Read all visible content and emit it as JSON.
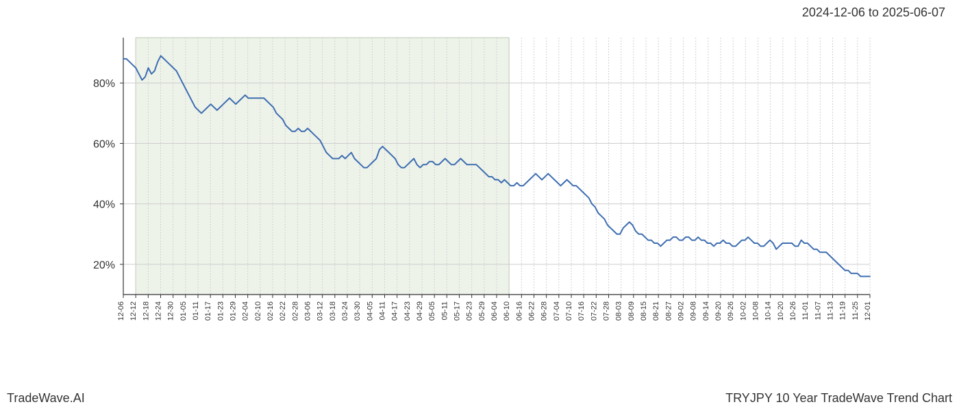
{
  "header": {
    "date_range": "2024-12-06 to 2025-06-07"
  },
  "footer": {
    "left": "TradeWave.AI",
    "right": "TRYJPY 10 Year TradeWave Trend Chart"
  },
  "chart": {
    "type": "line",
    "background_color": "#ffffff",
    "highlight_color": "#e0ead8",
    "highlight_opacity": 0.55,
    "highlight_border_color": "#b8c8b0",
    "line_color": "#3d6db0",
    "line_width": 2,
    "grid_vertical_color": "#d0d0d0",
    "grid_vertical_dash": "2,2",
    "grid_horizontal_color": "#cccccc",
    "axis_color": "#333333",
    "ylim": [
      10,
      95
    ],
    "y_ticks": [
      20,
      40,
      60,
      80
    ],
    "y_tick_labels": [
      "20%",
      "40%",
      "60%",
      "80%"
    ],
    "x_tick_labels": [
      "12-06",
      "12-12",
      "12-18",
      "12-24",
      "12-30",
      "01-05",
      "01-11",
      "01-17",
      "01-23",
      "01-29",
      "02-04",
      "02-10",
      "02-16",
      "02-22",
      "02-28",
      "03-06",
      "03-12",
      "03-18",
      "03-24",
      "03-30",
      "04-05",
      "04-11",
      "04-17",
      "04-23",
      "04-29",
      "05-05",
      "05-11",
      "05-17",
      "05-23",
      "05-29",
      "06-04",
      "06-10",
      "06-16",
      "06-22",
      "06-28",
      "07-04",
      "07-10",
      "07-16",
      "07-22",
      "07-28",
      "08-03",
      "08-09",
      "08-15",
      "08-21",
      "08-27",
      "09-02",
      "09-08",
      "09-14",
      "09-20",
      "09-26",
      "10-02",
      "10-08",
      "10-14",
      "10-20",
      "10-26",
      "11-01",
      "11-07",
      "11-13",
      "11-19",
      "11-25",
      "12-01"
    ],
    "x_tick_fontsize": 11,
    "y_tick_fontsize": 16,
    "highlight_start_index": 1,
    "highlight_end_index": 31,
    "series": [
      88,
      88,
      87,
      86,
      85,
      83,
      81,
      82,
      85,
      83,
      84,
      87,
      89,
      88,
      87,
      86,
      85,
      84,
      82,
      80,
      78,
      76,
      74,
      72,
      71,
      70,
      71,
      72,
      73,
      72,
      71,
      72,
      73,
      74,
      75,
      74,
      73,
      74,
      75,
      76,
      75,
      75,
      75,
      75,
      75,
      75,
      74,
      73,
      72,
      70,
      69,
      68,
      66,
      65,
      64,
      64,
      65,
      64,
      64,
      65,
      64,
      63,
      62,
      61,
      59,
      57,
      56,
      55,
      55,
      55,
      56,
      55,
      56,
      57,
      55,
      54,
      53,
      52,
      52,
      53,
      54,
      55,
      58,
      59,
      58,
      57,
      56,
      55,
      53,
      52,
      52,
      53,
      54,
      55,
      53,
      52,
      53,
      53,
      54,
      54,
      53,
      53,
      54,
      55,
      54,
      53,
      53,
      54,
      55,
      54,
      53,
      53,
      53,
      53,
      52,
      51,
      50,
      49,
      49,
      48,
      48,
      47,
      48,
      47,
      46,
      46,
      47,
      46,
      46,
      47,
      48,
      49,
      50,
      49,
      48,
      49,
      50,
      49,
      48,
      47,
      46,
      47,
      48,
      47,
      46,
      46,
      45,
      44,
      43,
      42,
      40,
      39,
      37,
      36,
      35,
      33,
      32,
      31,
      30,
      30,
      32,
      33,
      34,
      33,
      31,
      30,
      30,
      29,
      28,
      28,
      27,
      27,
      26,
      27,
      28,
      28,
      29,
      29,
      28,
      28,
      29,
      29,
      28,
      28,
      29,
      28,
      28,
      27,
      27,
      26,
      27,
      27,
      28,
      27,
      27,
      26,
      26,
      27,
      28,
      28,
      29,
      28,
      27,
      27,
      26,
      26,
      27,
      28,
      27,
      25,
      26,
      27,
      27,
      27,
      27,
      26,
      26,
      28,
      27,
      27,
      26,
      25,
      25,
      24,
      24,
      24,
      23,
      22,
      21,
      20,
      19,
      18,
      18,
      17,
      17,
      17,
      16,
      16,
      16,
      16
    ]
  }
}
